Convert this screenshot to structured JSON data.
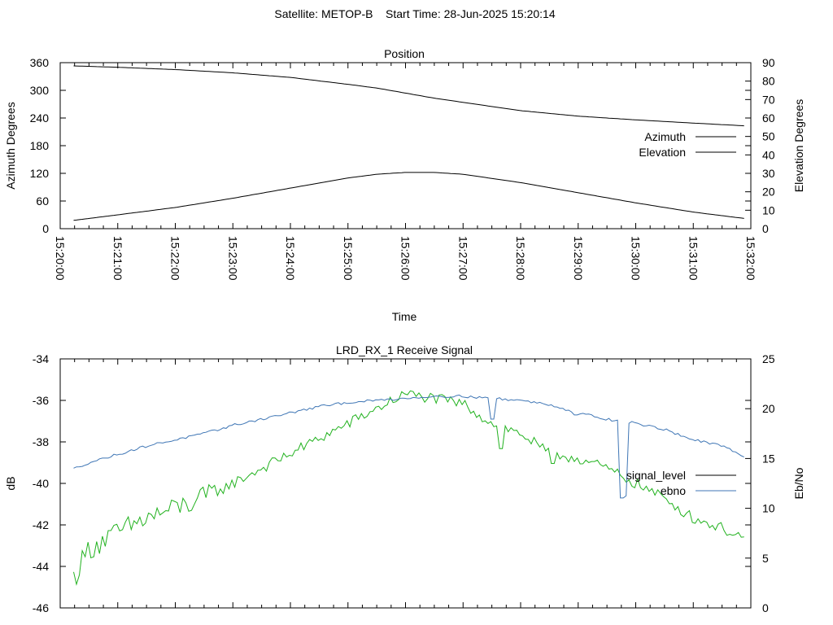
{
  "figure_title": "Satellite: METOP-B    Start Time: 28-Jun-2025 15:20:14",
  "colors": {
    "azimuth": "#a0303a",
    "elevation": "#3f76b5",
    "signal_level": "#22b21f",
    "ebno": "#3f76b5",
    "legend_signal_level": "#000000",
    "grid": "#000000"
  },
  "chart_data": [
    {
      "type": "line",
      "title": "Position",
      "xlabel": "Time",
      "ylabel": "Azimuth Degrees",
      "y2label": "Elevation Degrees",
      "xlim": [
        "15:20:00",
        "15:32:00"
      ],
      "ylim": [
        0,
        360
      ],
      "y2lim": [
        0,
        90
      ],
      "x_ticks": [
        "15:20:00",
        "15:21:00",
        "15:22:00",
        "15:23:00",
        "15:24:00",
        "15:25:00",
        "15:26:00",
        "15:27:00",
        "15:28:00",
        "15:29:00",
        "15:30:00",
        "15:31:00",
        "15:32:00"
      ],
      "y_ticks": [
        "0",
        "60",
        "120",
        "180",
        "240",
        "300",
        "360"
      ],
      "y2_ticks": [
        "0",
        "10",
        "20",
        "30",
        "40",
        "50",
        "60",
        "70",
        "80",
        "90"
      ],
      "grid": false,
      "legend": "right",
      "series": [
        {
          "name": "Azimuth",
          "axis": "y",
          "x": [
            "15:20:14",
            "15:21:00",
            "15:22:00",
            "15:23:00",
            "15:24:00",
            "15:25:00",
            "15:25:30",
            "15:26:00",
            "15:26:30",
            "15:27:00",
            "15:28:00",
            "15:29:00",
            "15:30:00",
            "15:31:00",
            "15:31:54"
          ],
          "values": [
            353,
            350,
            345,
            338,
            328,
            313,
            305,
            294,
            283,
            274,
            256,
            244,
            236,
            229,
            223
          ]
        },
        {
          "name": "Elevation",
          "axis": "y2",
          "x": [
            "15:20:14",
            "15:21:00",
            "15:22:00",
            "15:23:00",
            "15:24:00",
            "15:25:00",
            "15:25:30",
            "15:26:00",
            "15:26:30",
            "15:27:00",
            "15:28:00",
            "15:29:00",
            "15:30:00",
            "15:31:00",
            "15:31:54"
          ],
          "values": [
            4.5,
            7.5,
            11.5,
            16.5,
            22,
            27.5,
            29.5,
            30.5,
            30.5,
            29.5,
            25,
            19.5,
            14,
            9,
            5.5
          ]
        }
      ]
    },
    {
      "type": "line",
      "title": "LRD_RX_1 Receive Signal",
      "xlabel": "",
      "ylabel": "dB",
      "y2label": "Eb/No",
      "xlim": [
        "15:20:00",
        "15:32:00"
      ],
      "ylim": [
        -46,
        -34
      ],
      "y2lim": [
        0,
        25
      ],
      "x_ticks": [],
      "y_ticks": [
        "-46",
        "-44",
        "-42",
        "-40",
        "-38",
        "-36",
        "-34"
      ],
      "y2_ticks": [
        "0",
        "5",
        "10",
        "15",
        "20",
        "25"
      ],
      "grid": false,
      "legend": "right",
      "series": [
        {
          "name": "signal_level",
          "axis": "y2",
          "x": [
            "15:20:14",
            "15:20:30",
            "15:21:00",
            "15:21:30",
            "15:22:00",
            "15:22:30",
            "15:23:00",
            "15:23:30",
            "15:24:00",
            "15:24:30",
            "15:25:00",
            "15:25:30",
            "15:26:00",
            "15:26:30",
            "15:27:00",
            "15:27:30",
            "15:28:00",
            "15:28:30",
            "15:29:00",
            "15:29:30",
            "15:30:00",
            "15:30:30",
            "15:31:00",
            "15:31:30",
            "15:31:54"
          ],
          "values": [
            3,
            6,
            7.5,
            9,
            10,
            11,
            12.5,
            14,
            15.5,
            17,
            18.5,
            20,
            21.5,
            21,
            20.5,
            18.5,
            17.5,
            15.5,
            15,
            14,
            12.5,
            11,
            9,
            8,
            7
          ],
          "dips": [
            {
              "x": "15:27:40",
              "value": 16
            },
            {
              "x": "15:28:33",
              "value": 14.5
            }
          ]
        },
        {
          "name": "ebno",
          "axis": "y",
          "x": [
            "15:20:14",
            "15:20:30",
            "15:21:00",
            "15:21:30",
            "15:22:00",
            "15:22:30",
            "15:23:00",
            "15:23:30",
            "15:24:00",
            "15:24:30",
            "15:25:00",
            "15:25:30",
            "15:26:00",
            "15:26:30",
            "15:27:00",
            "15:27:30",
            "15:28:00",
            "15:28:30",
            "15:29:00",
            "15:29:30",
            "15:30:00",
            "15:30:30",
            "15:31:00",
            "15:31:30",
            "15:31:54"
          ],
          "values": [
            -39.3,
            -39,
            -38.6,
            -38.2,
            -37.9,
            -37.6,
            -37.2,
            -36.9,
            -36.6,
            -36.3,
            -36.1,
            -36,
            -35.9,
            -35.8,
            -35.8,
            -35.9,
            -36,
            -36.2,
            -36.6,
            -36.9,
            -37.1,
            -37.4,
            -37.9,
            -38.2,
            -38.7
          ],
          "dips": [
            {
              "x": "15:27:30",
              "value": -36.9
            },
            {
              "x": "15:28:57",
              "value": -36.7
            },
            {
              "x": "15:29:35",
              "value": -37.0
            },
            {
              "x": "15:29:45",
              "value": -40.7
            },
            {
              "x": "15:29:50",
              "value": -40.6
            }
          ]
        }
      ]
    }
  ]
}
